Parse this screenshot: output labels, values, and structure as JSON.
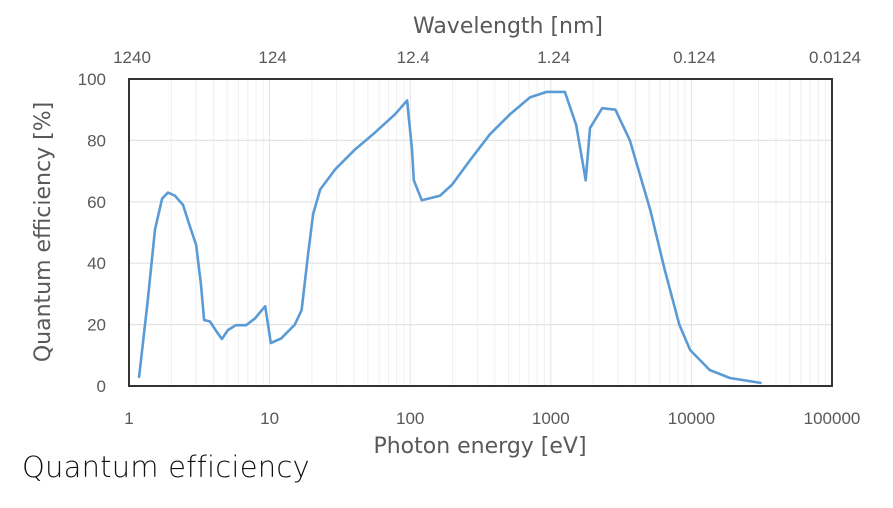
{
  "caption": "Quantum efficiency",
  "chart_data": {
    "type": "line",
    "title": "",
    "xlabel": "Photon energy [eV]",
    "ylabel": "Quantum efficiency [%]",
    "x2label": "Wavelength [nm]",
    "xscale": "log",
    "xlim": [
      1,
      100000
    ],
    "ylim": [
      0,
      100
    ],
    "grid": true,
    "legend": "none",
    "x_ticks": [
      "1",
      "10",
      "100",
      "1000",
      "10000",
      "100000"
    ],
    "x_tick_values": [
      1,
      10,
      100,
      1000,
      10000,
      100000
    ],
    "x2_ticks": [
      "1240",
      "124",
      "12.4",
      "1.24",
      "0.124",
      "0.0124"
    ],
    "y_ticks": [
      "0",
      "20",
      "40",
      "60",
      "80",
      "100"
    ],
    "y_tick_values": [
      0,
      20,
      40,
      60,
      80,
      100
    ],
    "line_color": "#5B9BD5",
    "series": [
      {
        "name": "Quantum efficiency",
        "x": [
          1.18,
          1.36,
          1.53,
          1.72,
          1.89,
          2.12,
          2.42,
          2.71,
          3.0,
          3.25,
          3.42,
          3.77,
          4.16,
          4.58,
          5.05,
          5.75,
          6.8,
          7.86,
          9.3,
          10.2,
          12.1,
          15.1,
          16.9,
          18.8,
          20.4,
          22.9,
          29.2,
          40.4,
          56,
          78,
          95,
          103,
          106,
          121,
          163,
          198,
          266,
          369,
          513,
          711,
          935,
          1260,
          1515,
          1770,
          1900,
          2320,
          2880,
          3650,
          5100,
          6450,
          8200,
          9800,
          13500,
          18800,
          31000
        ],
        "y": [
          3,
          28,
          51,
          61,
          63,
          62,
          59,
          52,
          46,
          33,
          21.5,
          21,
          18,
          15.3,
          18.2,
          19.8,
          19.8,
          22,
          26,
          14,
          15.5,
          20,
          24.7,
          43,
          56,
          64,
          70.5,
          77,
          82.5,
          88.5,
          93,
          77,
          67,
          60.5,
          62,
          65.5,
          73.5,
          82,
          88.5,
          94,
          95.8,
          95.8,
          85,
          67,
          84,
          90.5,
          90,
          80,
          57.3,
          38,
          20,
          11.7,
          5.2,
          2.6,
          1.0
        ]
      }
    ]
  }
}
